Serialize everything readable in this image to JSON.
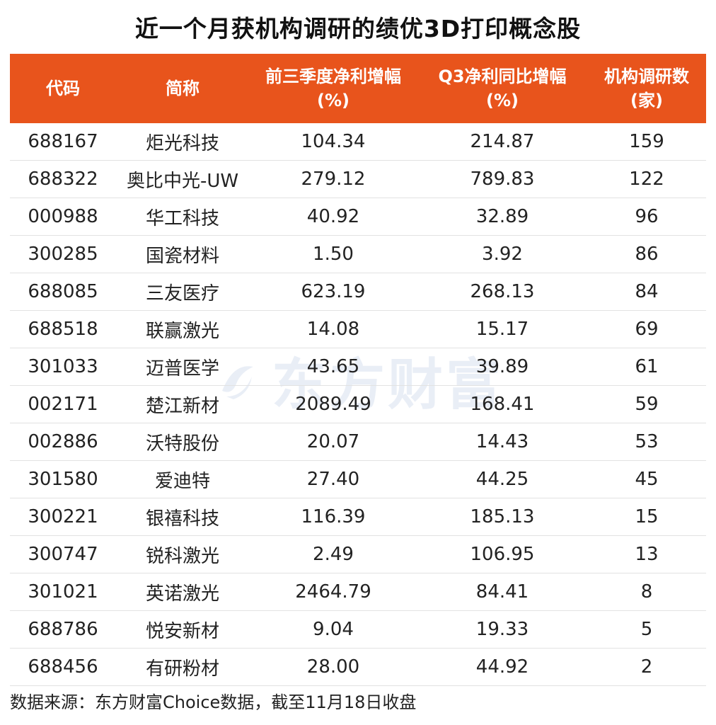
{
  "title": "近一个月获机构调研的绩优3D打印概念股",
  "header": {
    "code": "代码",
    "name": "简称",
    "profit3q_line1": "前三季度净利增幅",
    "profit3q_line2": "(%)",
    "q3yoy_line1": "Q3净利同比增幅",
    "q3yoy_line2": "(%)",
    "inst_line1": "机构调研数",
    "inst_line2": "(家)"
  },
  "rows": [
    {
      "code": "688167",
      "name": "炬光科技",
      "profit3q": "104.34",
      "q3yoy": "214.87",
      "inst": "159"
    },
    {
      "code": "688322",
      "name": "奥比中光-UW",
      "profit3q": "279.12",
      "q3yoy": "789.83",
      "inst": "122"
    },
    {
      "code": "000988",
      "name": "华工科技",
      "profit3q": "40.92",
      "q3yoy": "32.89",
      "inst": "96"
    },
    {
      "code": "300285",
      "name": "国瓷材料",
      "profit3q": "1.50",
      "q3yoy": "3.92",
      "inst": "86"
    },
    {
      "code": "688085",
      "name": "三友医疗",
      "profit3q": "623.19",
      "q3yoy": "268.13",
      "inst": "84"
    },
    {
      "code": "688518",
      "name": "联赢激光",
      "profit3q": "14.08",
      "q3yoy": "15.17",
      "inst": "69"
    },
    {
      "code": "301033",
      "name": "迈普医学",
      "profit3q": "43.65",
      "q3yoy": "39.89",
      "inst": "61"
    },
    {
      "code": "002171",
      "name": "楚江新材",
      "profit3q": "2089.49",
      "q3yoy": "168.41",
      "inst": "59"
    },
    {
      "code": "002886",
      "name": "沃特股份",
      "profit3q": "20.07",
      "q3yoy": "14.43",
      "inst": "53"
    },
    {
      "code": "301580",
      "name": "爱迪特",
      "profit3q": "27.40",
      "q3yoy": "44.25",
      "inst": "45"
    },
    {
      "code": "300221",
      "name": "银禧科技",
      "profit3q": "116.39",
      "q3yoy": "185.13",
      "inst": "15"
    },
    {
      "code": "300747",
      "name": "锐科激光",
      "profit3q": "2.49",
      "q3yoy": "106.95",
      "inst": "13"
    },
    {
      "code": "301021",
      "name": "英诺激光",
      "profit3q": "2464.79",
      "q3yoy": "84.41",
      "inst": "8"
    },
    {
      "code": "688786",
      "name": "悦安新材",
      "profit3q": "9.04",
      "q3yoy": "19.33",
      "inst": "5"
    },
    {
      "code": "688456",
      "name": "有研粉材",
      "profit3q": "28.00",
      "q3yoy": "44.92",
      "inst": "2"
    }
  ],
  "footer": "数据来源：东方财富Choice数据，截至11月18日收盘",
  "watermark": {
    "text": "东方财富",
    "icon": "eastmoney-logo-icon",
    "color": "#1a4fa0"
  },
  "colors": {
    "header_bg": "#e8541c",
    "header_text": "#ffffff",
    "row_border": "#e2e2e2"
  }
}
